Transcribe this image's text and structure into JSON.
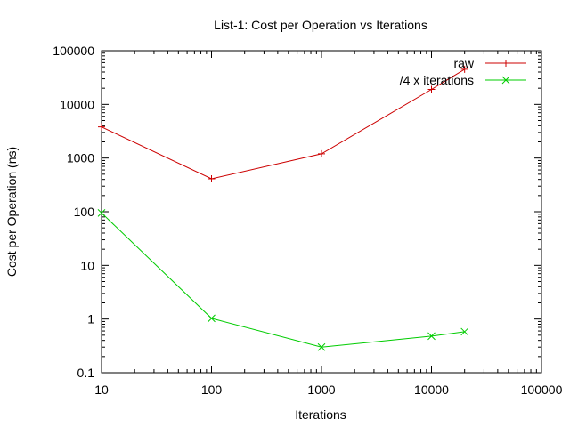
{
  "chart_data": {
    "type": "line",
    "title": "List-1: Cost per Operation vs Iterations",
    "xlabel": "Iterations",
    "ylabel": "Cost per Operation (ns)",
    "xscale": "log",
    "yscale": "log",
    "xlim": [
      10,
      100000
    ],
    "ylim": [
      0.1,
      100000
    ],
    "x_ticks": [
      10,
      100,
      1000,
      10000,
      100000
    ],
    "x_tick_labels": [
      "10",
      "100",
      "1000",
      "10000",
      "100000"
    ],
    "y_ticks": [
      0.1,
      1,
      10,
      100,
      1000,
      10000,
      100000
    ],
    "y_tick_labels": [
      "0.1",
      "1",
      "10",
      "100",
      "1000",
      "10000",
      "100000"
    ],
    "grid": false,
    "legend_position": "top-right",
    "series": [
      {
        "name": "raw",
        "color": "#cc0000",
        "marker": "plus",
        "x": [
          10,
          100,
          1000,
          10000,
          20000
        ],
        "y": [
          3800,
          410,
          1200,
          19000,
          45000
        ]
      },
      {
        "name": "/4 x iterations",
        "color": "#00cc00",
        "marker": "cross",
        "x": [
          10,
          100,
          1000,
          10000,
          20000
        ],
        "y": [
          95,
          1.03,
          0.3,
          0.48,
          0.58
        ]
      }
    ]
  }
}
